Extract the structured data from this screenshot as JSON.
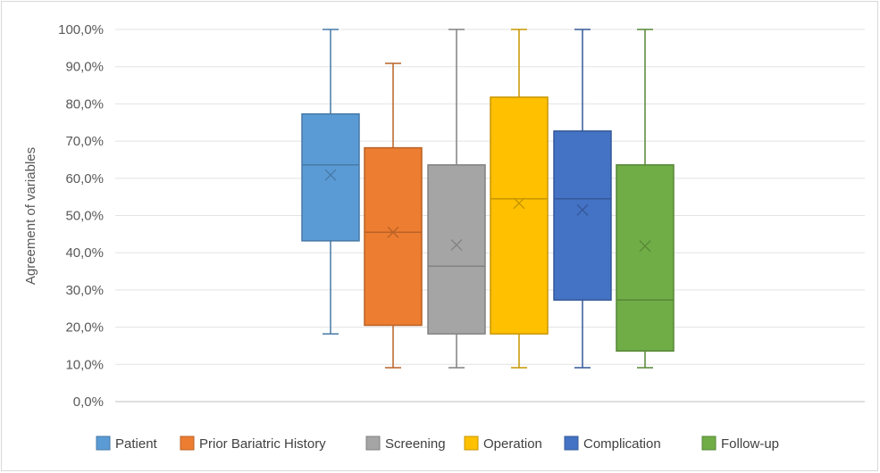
{
  "chart_data": {
    "type": "boxplot",
    "ylabel": "Agreement of variables",
    "ylim": [
      0,
      100
    ],
    "y_ticks": [
      "0,0%",
      "10,0%",
      "20,0%",
      "30,0%",
      "40,0%",
      "50,0%",
      "60,0%",
      "70,0%",
      "80,0%",
      "90,0%",
      "100,0%"
    ],
    "grid": true,
    "legend_position": "bottom",
    "series": [
      {
        "name": "Patient",
        "color": "#5b9bd5",
        "min": 18.2,
        "q1": 43.2,
        "median": 63.6,
        "q3": 77.3,
        "max": 100,
        "mean": 60.9
      },
      {
        "name": "Prior Bariatric History",
        "color": "#ed7d31",
        "min": 9.1,
        "q1": 20.5,
        "median": 45.5,
        "q3": 68.2,
        "max": 90.9,
        "mean": 45.5
      },
      {
        "name": "Screening",
        "color": "#a5a5a5",
        "min": 9.1,
        "q1": 18.2,
        "median": 36.4,
        "q3": 63.6,
        "max": 100,
        "mean": 42.1
      },
      {
        "name": "Operation",
        "color": "#ffc000",
        "min": 9.1,
        "q1": 18.2,
        "median": 54.5,
        "q3": 81.8,
        "max": 100,
        "mean": 53.3
      },
      {
        "name": "Complication",
        "color": "#4472c4",
        "min": 9.1,
        "q1": 27.3,
        "median": 54.5,
        "q3": 72.7,
        "max": 100,
        "mean": 51.5
      },
      {
        "name": "Follow-up",
        "color": "#70ad47",
        "min": 9.1,
        "q1": 13.6,
        "median": 27.3,
        "q3": 63.6,
        "max": 100,
        "mean": 41.8
      }
    ]
  }
}
